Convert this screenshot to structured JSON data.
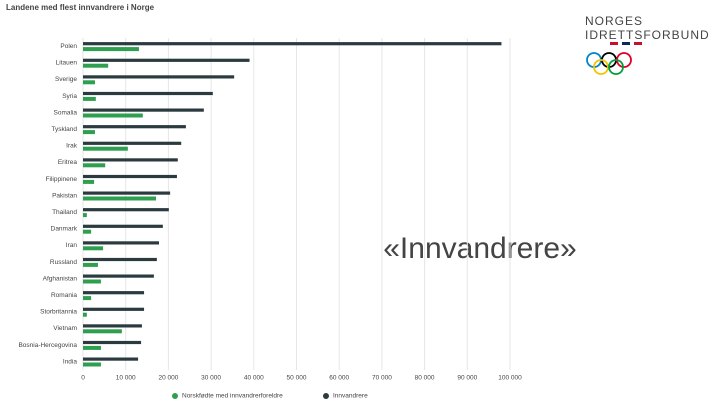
{
  "chart_data": {
    "type": "bar",
    "orientation": "horizontal",
    "title": "Landene med flest innvandrere i Norge",
    "categories": [
      "Polen",
      "Litauen",
      "Sverige",
      "Syria",
      "Somalia",
      "Tyskland",
      "Irak",
      "Eritrea",
      "Filippinene",
      "Pakistan",
      "Thailand",
      "Danmark",
      "Iran",
      "Russland",
      "Afghanistan",
      "Romania",
      "Storbritannia",
      "Vietnam",
      "Bosnia-Hercegovina",
      "India"
    ],
    "series": [
      {
        "name": "Norskfødte med innvandrerforeldre",
        "color": "#2e9e4f",
        "values": [
          13100,
          5900,
          2800,
          3000,
          14000,
          2800,
          10500,
          5200,
          2600,
          17100,
          900,
          1900,
          4700,
          3500,
          4200,
          1900,
          900,
          9100,
          4200,
          4200
        ]
      },
      {
        "name": "Innvandrere",
        "color": "#2b3a3f",
        "values": [
          98000,
          39000,
          35400,
          30400,
          28300,
          24100,
          23000,
          22200,
          22000,
          20400,
          20100,
          18700,
          17800,
          17300,
          16600,
          14300,
          14300,
          13800,
          13600,
          12900
        ]
      }
    ],
    "xlim": [
      0,
      100000
    ],
    "xticks": [
      0,
      {
        "value": 10000,
        "label": "10 000"
      },
      {
        "value": 20000,
        "label": "20 000"
      },
      {
        "value": 30000,
        "label": "30 000"
      },
      {
        "value": 40000,
        "label": "40 000"
      },
      {
        "value": 50000,
        "label": "50 000"
      },
      {
        "value": 60000,
        "label": "60 000"
      },
      {
        "value": 70000,
        "label": "70 000"
      },
      {
        "value": 80000,
        "label": "80 000"
      },
      {
        "value": 90000,
        "label": "90 000"
      },
      {
        "value": 100000,
        "label": "100 000"
      }
    ],
    "grid": true,
    "legend": "bottom"
  },
  "slide": {
    "heading": "«Innvandrere»",
    "logo": [
      "NORGES",
      "IDRETTSFORBUND"
    ]
  }
}
